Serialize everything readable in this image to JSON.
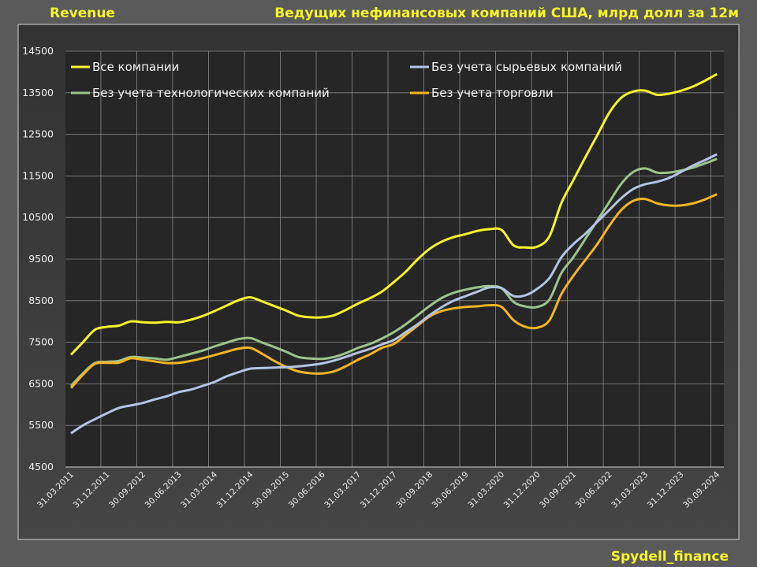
{
  "header": {
    "left_title": "Revenue",
    "right_title": "Ведущих нефинансовых компаний США, млрд долл за 12м"
  },
  "footer": {
    "watermark": "Spydell_finance"
  },
  "chart_data": {
    "type": "line",
    "title": "Ведущих нефинансовых компаний США, млрд долл за 12м",
    "xlabel": "",
    "ylabel": "",
    "ylim": [
      4500,
      14500
    ],
    "yticks": [
      "4500",
      "5500",
      "6500",
      "7500",
      "8500",
      "9500",
      "10500",
      "11500",
      "12500",
      "13500",
      "14500"
    ],
    "x_note": "quarterly, 2011Q1 to 2024Q3 (index 0..54); every 3rd quarter labelled",
    "xtick_labels": [
      "31.03.2011",
      "31.12.2011",
      "30.09.2012",
      "30.06.2013",
      "31.03.2014",
      "31.12.2014",
      "30.09.2015",
      "30.06.2016",
      "31.03.2017",
      "31.12.2017",
      "30.09.2018",
      "30.06.2019",
      "31.03.2020",
      "31.12.2020",
      "30.09.2021",
      "30.06.2022",
      "31.03.2023",
      "31.12.2023",
      "30.09.2024"
    ],
    "grid": true,
    "legend_placement": "top, two columns",
    "series": [
      {
        "name": "Все компании",
        "color": "#f5f52a",
        "values": [
          7200,
          7500,
          7800,
          7870,
          7900,
          8000,
          7980,
          7970,
          7990,
          7980,
          8040,
          8130,
          8250,
          8380,
          8510,
          8580,
          8480,
          8370,
          8260,
          8140,
          8100,
          8100,
          8150,
          8280,
          8430,
          8560,
          8720,
          8950,
          9200,
          9500,
          9750,
          9920,
          10030,
          10100,
          10180,
          10220,
          10200,
          9830,
          9780,
          9800,
          10050,
          10850,
          11400,
          11950,
          12480,
          13020,
          13380,
          13530,
          13550,
          13450,
          13480,
          13550,
          13650,
          13790,
          13950
        ]
      },
      {
        "name": "Без учета сырьевых компаний",
        "color": "#b4c4e4",
        "values": [
          5310,
          5500,
          5650,
          5790,
          5920,
          5980,
          6040,
          6125,
          6200,
          6300,
          6360,
          6450,
          6545,
          6680,
          6780,
          6865,
          6880,
          6890,
          6900,
          6920,
          6950,
          6990,
          7060,
          7150,
          7250,
          7340,
          7450,
          7555,
          7745,
          7935,
          8155,
          8345,
          8500,
          8610,
          8720,
          8820,
          8800,
          8610,
          8630,
          8790,
          9045,
          9545,
          9860,
          10110,
          10395,
          10680,
          10965,
          11185,
          11300,
          11360,
          11450,
          11595,
          11750,
          11880,
          12020
        ]
      },
      {
        "name": "Без учета технологических компаний",
        "color": "#9dc48a",
        "values": [
          6450,
          6750,
          7000,
          7030,
          7050,
          7145,
          7130,
          7110,
          7080,
          7145,
          7220,
          7300,
          7400,
          7490,
          7575,
          7600,
          7490,
          7385,
          7270,
          7145,
          7110,
          7100,
          7145,
          7240,
          7365,
          7460,
          7590,
          7745,
          7935,
          8155,
          8375,
          8565,
          8690,
          8765,
          8820,
          8850,
          8800,
          8470,
          8360,
          8350,
          8530,
          9165,
          9545,
          9985,
          10430,
          10870,
          11310,
          11595,
          11680,
          11580,
          11580,
          11630,
          11700,
          11800,
          11910
        ]
      },
      {
        "name": "Без учета торговли",
        "color": "#f5b422",
        "values": [
          6400,
          6720,
          6980,
          7005,
          7010,
          7115,
          7080,
          7040,
          7000,
          7005,
          7050,
          7115,
          7190,
          7270,
          7345,
          7365,
          7220,
          7050,
          6905,
          6800,
          6755,
          6750,
          6800,
          6925,
          7080,
          7210,
          7365,
          7460,
          7680,
          7905,
          8125,
          8250,
          8315,
          8350,
          8365,
          8390,
          8350,
          8030,
          7870,
          7850,
          8030,
          8660,
          9100,
          9480,
          9860,
          10300,
          10680,
          10900,
          10945,
          10840,
          10790,
          10790,
          10840,
          10935,
          11060
        ]
      }
    ]
  }
}
